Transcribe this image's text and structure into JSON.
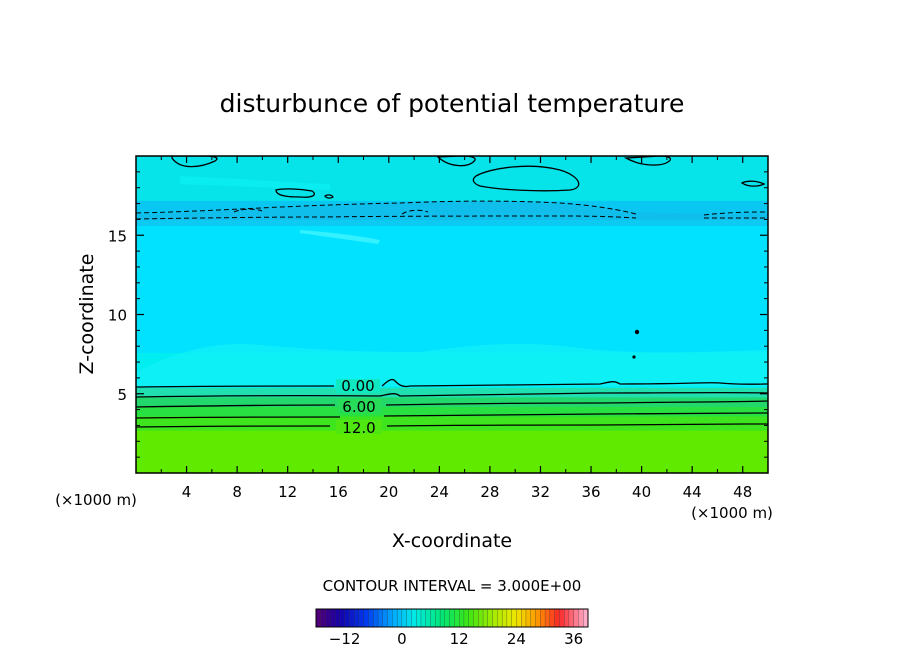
{
  "chart_data": {
    "type": "heatmap",
    "title": "disturbunce of potential temperature",
    "xlabel": "X-coordinate",
    "ylabel": "Z-coordinate",
    "x_unit": "(×1000 m)",
    "y_unit": "(×1000 m)",
    "xlim": [
      0,
      50
    ],
    "ylim": [
      0,
      20
    ],
    "x_ticks": [
      "4",
      "8",
      "12",
      "16",
      "20",
      "24",
      "28",
      "32",
      "36",
      "40",
      "44",
      "48"
    ],
    "y_ticks": [
      "5",
      "10",
      "15"
    ],
    "contour_labels": [
      "0.00",
      "6.00",
      "12.0"
    ],
    "contour_interval_text": "CONTOUR INTERVAL = 3.000E+00",
    "colorbar": {
      "min": -18,
      "max": 39,
      "tick_values": [
        -12,
        0,
        12,
        24,
        36
      ],
      "tick_labels": [
        "−12",
        "0",
        "12",
        "24",
        "36"
      ]
    },
    "field_bands": [
      {
        "z_from": 0,
        "z_to": 2.7,
        "value": 13.5,
        "color": "#5fea00"
      },
      {
        "z_from": 2.7,
        "z_to": 3.6,
        "value": 11,
        "color": "#3ee51e"
      },
      {
        "z_from": 3.6,
        "z_to": 4.2,
        "value": 8.5,
        "color": "#29e043"
      },
      {
        "z_from": 4.2,
        "z_to": 4.8,
        "value": 6,
        "color": "#22d86d"
      },
      {
        "z_from": 4.8,
        "z_to": 5.4,
        "value": 2,
        "color": "#1fe0ae"
      },
      {
        "z_from": 5.4,
        "z_to": 7.6,
        "value": -1,
        "color": "#00eef0"
      },
      {
        "z_from": 7.6,
        "z_to": 16.0,
        "value": -3,
        "color": "#00e2ff"
      },
      {
        "z_from": 16.0,
        "z_to": 17.2,
        "value": -6,
        "color": "#0ac7f2"
      },
      {
        "z_from": 17.2,
        "z_to": 20,
        "value": 0,
        "color": "#06e4ea"
      }
    ],
    "colors": {
      "contour": "#000000",
      "frame": "#000000"
    }
  }
}
